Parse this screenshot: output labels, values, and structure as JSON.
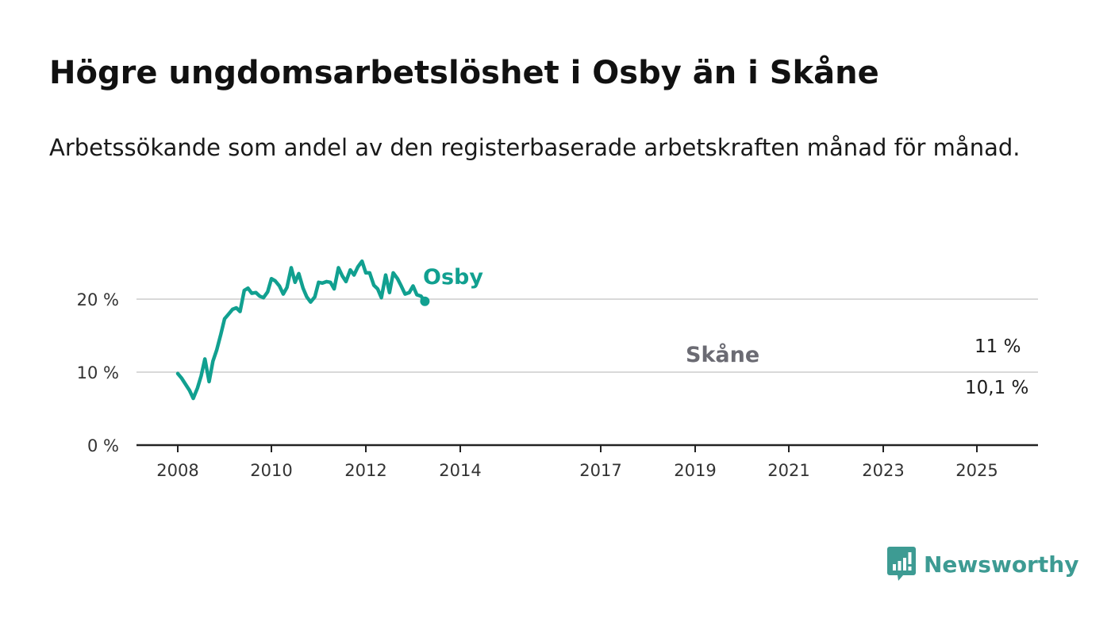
{
  "title": "Högre ungdomsarbetslöshet i Osby än i Skåne",
  "subtitle": "Arbetssökande som andel av den registerbaserade arbetskraften månad för månad.",
  "brand": {
    "name": "Newsworthy",
    "icon": "bar-chart-badge-icon",
    "color": "#3d9b93"
  },
  "colors": {
    "osby": "#11a090",
    "skane": "#6b6b73",
    "grid": "#d9d9d9",
    "axis": "#222222"
  },
  "chart_data": {
    "type": "line",
    "title": "Högre ungdomsarbetslöshet i Osby än i Skåne",
    "subtitle": "Arbetssökande som andel av den registerbaserade arbetskraften månad för månad.",
    "xlabel": "",
    "ylabel": "",
    "xlim": [
      2007.2,
      2026.3
    ],
    "ylim": [
      0,
      26
    ],
    "grid": true,
    "legend": "inline labels",
    "y_ticks": [
      {
        "value": 0,
        "label": "0 %"
      },
      {
        "value": 10,
        "label": "10 %"
      },
      {
        "value": 20,
        "label": "20 %"
      }
    ],
    "x_ticks": [
      {
        "value": 2008,
        "label": "2008"
      },
      {
        "value": 2010,
        "label": "2010"
      },
      {
        "value": 2012,
        "label": "2012"
      },
      {
        "value": 2014,
        "label": "2014"
      },
      {
        "value": 2017,
        "label": "2017"
      },
      {
        "value": 2019,
        "label": "2019"
      },
      {
        "value": 2021,
        "label": "2021"
      },
      {
        "value": 2023,
        "label": "2023"
      },
      {
        "value": 2025,
        "label": "2025"
      }
    ],
    "series": [
      {
        "name": "Osby",
        "end_label": "11 %",
        "points": [
          [
            2008.0,
            9.8
          ],
          [
            2008.08,
            9.2
          ],
          [
            2008.17,
            8.3
          ],
          [
            2008.25,
            7.5
          ],
          [
            2008.33,
            6.4
          ],
          [
            2008.42,
            7.8
          ],
          [
            2008.5,
            9.5
          ],
          [
            2008.58,
            11.8
          ],
          [
            2008.67,
            8.7
          ],
          [
            2008.75,
            11.5
          ],
          [
            2008.83,
            13.0
          ],
          [
            2008.92,
            15.2
          ],
          [
            2009.0,
            17.3
          ],
          [
            2009.08,
            17.9
          ],
          [
            2009.17,
            18.6
          ],
          [
            2009.25,
            18.8
          ],
          [
            2009.33,
            18.3
          ],
          [
            2009.42,
            21.2
          ],
          [
            2009.5,
            21.5
          ],
          [
            2009.58,
            20.8
          ],
          [
            2009.67,
            20.9
          ],
          [
            2009.75,
            20.4
          ],
          [
            2009.83,
            20.2
          ],
          [
            2009.92,
            21.0
          ],
          [
            2010.0,
            22.8
          ],
          [
            2010.08,
            22.5
          ],
          [
            2010.17,
            21.8
          ],
          [
            2010.25,
            20.7
          ],
          [
            2010.33,
            21.6
          ],
          [
            2010.42,
            24.3
          ],
          [
            2010.5,
            22.3
          ],
          [
            2010.58,
            23.5
          ],
          [
            2010.67,
            21.5
          ],
          [
            2010.75,
            20.3
          ],
          [
            2010.83,
            19.6
          ],
          [
            2010.92,
            20.3
          ],
          [
            2011.0,
            22.3
          ],
          [
            2011.08,
            22.2
          ],
          [
            2011.17,
            22.4
          ],
          [
            2011.25,
            22.3
          ],
          [
            2011.33,
            21.4
          ],
          [
            2011.42,
            24.3
          ],
          [
            2011.5,
            23.2
          ],
          [
            2011.58,
            22.4
          ],
          [
            2011.67,
            24.0
          ],
          [
            2011.75,
            23.3
          ],
          [
            2011.83,
            24.4
          ],
          [
            2011.92,
            25.2
          ],
          [
            2012.0,
            23.6
          ],
          [
            2012.08,
            23.6
          ],
          [
            2012.17,
            21.9
          ],
          [
            2012.25,
            21.4
          ],
          [
            2012.33,
            20.2
          ],
          [
            2012.42,
            23.3
          ],
          [
            2012.5,
            20.9
          ],
          [
            2012.58,
            23.6
          ],
          [
            2012.67,
            22.8
          ],
          [
            2012.75,
            21.8
          ],
          [
            2012.83,
            20.7
          ],
          [
            2012.92,
            20.9
          ],
          [
            2013.0,
            21.8
          ],
          [
            2013.08,
            20.6
          ],
          [
            2013.17,
            20.4
          ],
          [
            2013.25,
            19.7
          ]
        ],
        "segments": [
          [
            [
              2008.0,
              9.8
            ],
            [
              2013.25,
              19.7
            ]
          ]
        ]
      },
      {
        "name": "Skåne",
        "end_label": "10,1 %"
      }
    ]
  }
}
